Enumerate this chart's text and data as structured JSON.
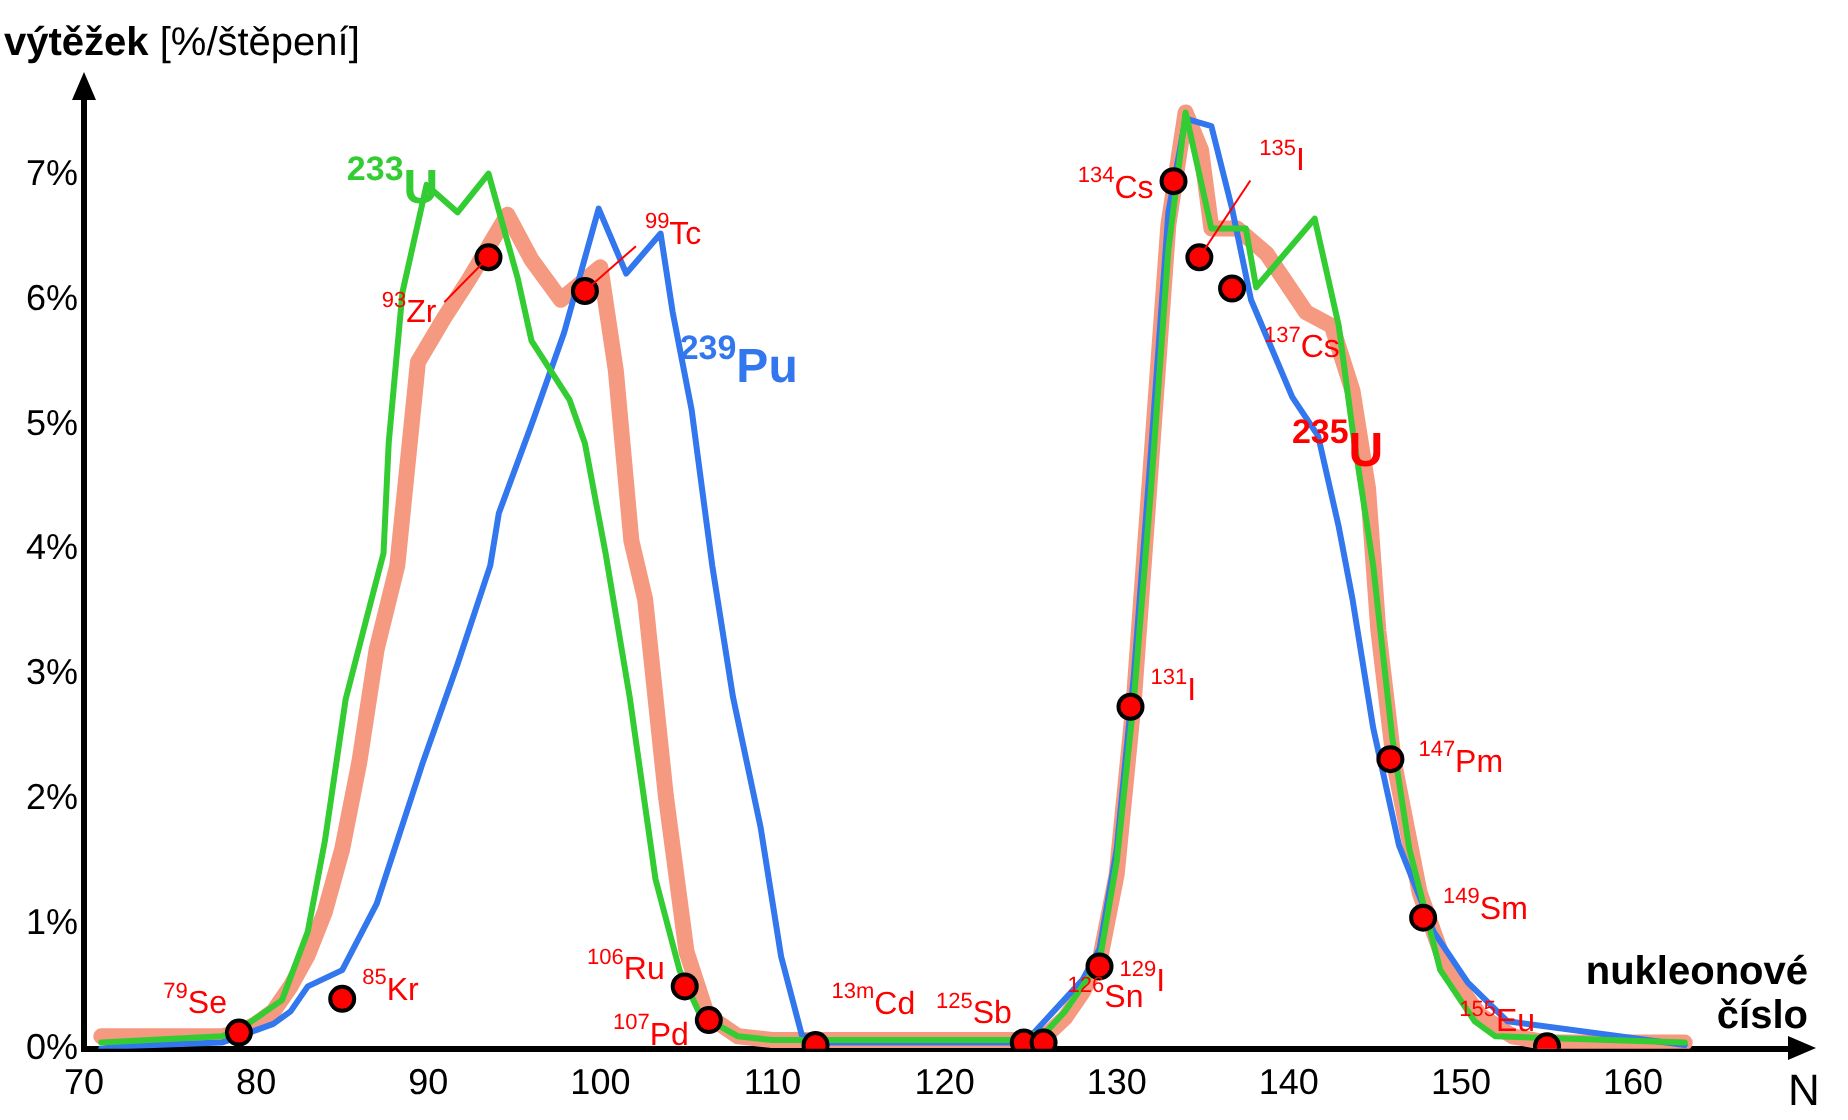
{
  "chart_data": {
    "type": "line",
    "xlabel": "nukleonové číslo",
    "ylabel": "výtěžek [%/štěpení]",
    "xlim": [
      70,
      169
    ],
    "xticks": [
      70,
      80,
      90,
      100,
      110,
      120,
      130,
      140,
      150,
      160
    ],
    "ylim": [
      0,
      7.6
    ],
    "yticks": [
      {
        "value": 0,
        "label": "0%"
      },
      {
        "value": 1,
        "label": "1%"
      },
      {
        "value": 2,
        "label": "2%"
      },
      {
        "value": 3,
        "label": "3%"
      },
      {
        "value": 4,
        "label": "4%"
      },
      {
        "value": 5,
        "label": "5%"
      },
      {
        "value": 6,
        "label": "6%"
      },
      {
        "value": 7,
        "label": "7%"
      }
    ],
    "grid": false,
    "legend": false,
    "line_style": "solid",
    "series": [
      {
        "name": "$^{233}$U",
        "marker": "none",
        "color": "#33cc33",
        "x": [
          71,
          78,
          79,
          81.5,
          83,
          84,
          85.2,
          86.4,
          87.4,
          87.7,
          88.5,
          89.9,
          91.7,
          93.5,
          95.2,
          96,
          98.2,
          99.1,
          100.3,
          101.7,
          103.2,
          104.6,
          105.8,
          108,
          110,
          124,
          126,
          127,
          128,
          129,
          130,
          131,
          132,
          133,
          134,
          135.5,
          137.5,
          138.1,
          141.5,
          142.9,
          143.7,
          144.9,
          146,
          147,
          148.8,
          150.8,
          152,
          163
        ],
        "values": [
          0.05,
          0.1,
          0.15,
          0.39,
          0.94,
          1.67,
          2.8,
          3.44,
          3.97,
          4.85,
          6.06,
          6.92,
          6.7,
          7.01,
          6.17,
          5.67,
          5.2,
          4.85,
          3.97,
          2.82,
          1.36,
          0.63,
          0.27,
          0.1,
          0.07,
          0.07,
          0.15,
          0.3,
          0.5,
          0.7,
          1.5,
          2.8,
          4.5,
          6.4,
          7.5,
          6.57,
          6.57,
          6.1,
          6.65,
          5.79,
          4.96,
          3.87,
          2.5,
          1.6,
          0.63,
          0.22,
          0.1,
          0.05
        ]
      },
      {
        "name": "$^{235}$U",
        "marker": "none",
        "color": "#f59a80",
        "x": [
          71,
          78,
          79,
          80,
          81,
          82,
          83,
          84,
          85,
          86,
          87,
          88.2,
          89.4,
          90.9,
          92.4,
          94.6,
          96,
          97.7,
          100,
          100.9,
          101.8,
          102.6,
          103.8,
          105,
          106.2,
          108,
          110,
          124,
          125,
          126,
          127,
          128,
          129,
          130,
          131,
          132,
          133,
          134,
          134.9,
          135.5,
          137,
          138.7,
          141,
          142.5,
          143.7,
          144.6,
          145.2,
          146.1,
          147.6,
          149.2,
          151.1,
          153,
          155,
          163
        ],
        "values": [
          0.1,
          0.1,
          0.13,
          0.2,
          0.3,
          0.5,
          0.75,
          1.1,
          1.6,
          2.3,
          3.2,
          3.87,
          5.5,
          5.85,
          6.17,
          6.68,
          6.32,
          6.0,
          6.26,
          5.43,
          4.07,
          3.6,
          2.03,
          0.78,
          0.27,
          0.1,
          0.07,
          0.07,
          0.08,
          0.12,
          0.25,
          0.45,
          0.7,
          1.4,
          2.8,
          4.7,
          6.6,
          7.5,
          7.2,
          6.57,
          6.57,
          6.37,
          5.9,
          5.79,
          5.27,
          4.49,
          3.35,
          2.3,
          1.25,
          0.63,
          0.27,
          0.1,
          0.05,
          0.05
        ]
      },
      {
        "name": "$^{239}$Pu",
        "marker": "none",
        "color": "#3377ee",
        "x": [
          71,
          72,
          78,
          79,
          80,
          81,
          82,
          83,
          85,
          87,
          89.7,
          91.7,
          93.6,
          94.1,
          96,
          97.9,
          99.9,
          101.5,
          103.5,
          104.2,
          105.3,
          106.2,
          106.5,
          107.7,
          109.3,
          110.5,
          111.7,
          113,
          124,
          125,
          126,
          127,
          128,
          129,
          130,
          131,
          132,
          133,
          134,
          135.5,
          136.7,
          137.8,
          140.2,
          141.7,
          142.9,
          143.7,
          144.9,
          146.4,
          148.4,
          150.4,
          152.7,
          163
        ],
        "values": [
          0,
          0.02,
          0.05,
          0.1,
          0.15,
          0.2,
          0.3,
          0.5,
          0.63,
          1.16,
          2.3,
          3.08,
          3.87,
          4.29,
          5.0,
          5.74,
          6.73,
          6.21,
          6.53,
          5.9,
          5.12,
          4.18,
          3.87,
          2.82,
          1.78,
          0.74,
          0.11,
          0.05,
          0.05,
          0.1,
          0.25,
          0.4,
          0.55,
          0.8,
          1.6,
          3.0,
          4.8,
          6.7,
          7.45,
          7.39,
          6.73,
          6.0,
          5.22,
          4.91,
          4.18,
          3.6,
          2.57,
          1.63,
          0.94,
          0.53,
          0.22,
          0.03
        ]
      },
      {
        "type": "scatter",
        "marker": "circle",
        "color": "#ff0000",
        "x": [
          79,
          85,
          93.5,
          99.1,
          104.9,
          106.3,
          112.5,
          124.6,
          125.75,
          129,
          130.8,
          133.3,
          134.8,
          136.7,
          145.9,
          147.8,
          155
        ],
        "values": [
          0.13,
          0.4,
          6.34,
          6.07,
          0.5,
          0.23,
          0.03,
          0.05,
          0.05,
          0.66,
          2.74,
          6.95,
          6.34,
          6.09,
          2.32,
          1.05,
          0.02
        ]
      }
    ],
    "annotations": [
      {
        "text": "$^{79}$Se",
        "x": 79,
        "y": 0.13
      },
      {
        "text": "$^{85}$Kr",
        "x": 85,
        "y": 0.4
      },
      {
        "text": "$^{93}$Zr",
        "x": 93.5,
        "y": 6.34
      },
      {
        "text": "$^{99}$Tc",
        "x": 99.1,
        "y": 6.07
      },
      {
        "text": "$^{106}$Ru",
        "x": 104.9,
        "y": 0.5
      },
      {
        "text": "$^{107}$Pd",
        "x": 106.3,
        "y": 0.23
      },
      {
        "text": "$^{13m}$Cd",
        "x": 112.5,
        "y": 0.03
      },
      {
        "text": "$^{125}$Sb",
        "x": 124.6,
        "y": 0.05
      },
      {
        "text": "$^{126}$Sn",
        "x": 125.75,
        "y": 0.05
      },
      {
        "text": "$^{129}$I",
        "x": 129,
        "y": 0.66
      },
      {
        "text": "$^{131}$I",
        "x": 130.8,
        "y": 2.74
      },
      {
        "text": "$^{134}$Cs",
        "x": 133.3,
        "y": 6.95
      },
      {
        "text": "$^{135}$I",
        "x": 134.8,
        "y": 6.34
      },
      {
        "text": "$^{137}$Cs",
        "x": 136.7,
        "y": 6.09
      },
      {
        "text": "$^{147}$Pm",
        "x": 145.9,
        "y": 2.32
      },
      {
        "text": "$^{149}$Sm",
        "x": 147.8,
        "y": 1.05
      },
      {
        "text": "$^{155}$Eu",
        "x": 155,
        "y": 0.02
      },
      "N"
    ]
  }
}
